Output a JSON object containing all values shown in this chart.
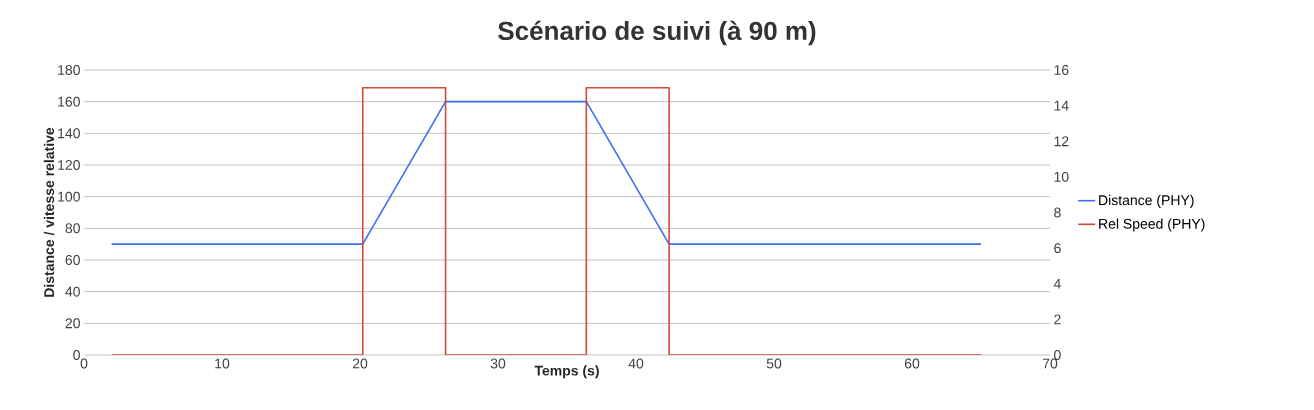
{
  "chart_data": {
    "type": "line",
    "title": "Scénario de suivi (à 90 m)",
    "xlabel": "Temps (s)",
    "ylabel": "Distance / vitesse relative",
    "series": [
      {
        "name": "Distance (PHY)",
        "color": "#3d6ef5",
        "x": [
          2,
          20.2,
          26.2,
          36.4,
          42.4,
          65
        ],
        "values": [
          70,
          70,
          160,
          160,
          70,
          70
        ]
      },
      {
        "name": "Rel Speed (PHY)",
        "color": "#d04a3a",
        "axis": "y2",
        "x": [
          2,
          20.2,
          20.2,
          26.2,
          26.2,
          36.4,
          36.4,
          42.4,
          42.4,
          65
        ],
        "values": [
          0,
          0,
          15,
          15,
          0,
          0,
          15,
          15,
          0,
          0
        ]
      }
    ],
    "xlim": [
      0,
      70
    ],
    "xticks": [
      0,
      10,
      20,
      30,
      40,
      50,
      60,
      70
    ],
    "ylim": [
      0,
      180
    ],
    "yticks": [
      0,
      20,
      40,
      60,
      80,
      100,
      120,
      140,
      160,
      180
    ],
    "y2lim": [
      0,
      16
    ],
    "y2ticks": [
      0,
      2,
      4,
      6,
      8,
      10,
      12,
      14,
      16
    ],
    "grid": "y",
    "legend": "right",
    "marker": "none",
    "line_style": "solid"
  }
}
